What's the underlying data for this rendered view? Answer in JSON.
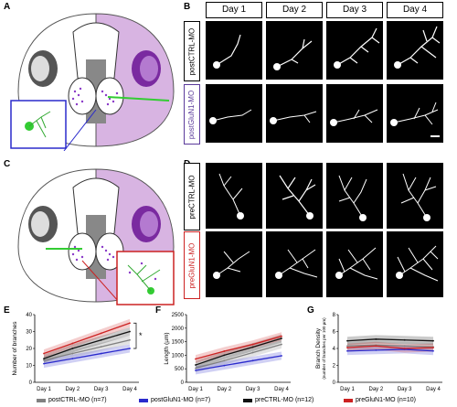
{
  "panel_labels": [
    "A",
    "B",
    "C",
    "D",
    "E",
    "F",
    "G"
  ],
  "days": [
    "Day 1",
    "Day 2",
    "Day 3",
    "Day 4"
  ],
  "row_labels": {
    "b_top": "postCTRL-MO",
    "b_bottom": "postGluN1-MO",
    "d_top": "preCTRL-MO",
    "d_bottom": "preGluN1-MO"
  },
  "colors": {
    "postCTRL": "#808080",
    "postGluN1": "#2a2acc",
    "preCTRL": "#111111",
    "preGluN1": "#cc2222",
    "brain_purple": "#d8b4e2",
    "eye_purple": "#7a2aa0",
    "label_purple": "#5a3a9a",
    "label_red": "#cc2222"
  },
  "legend": [
    {
      "label": "postCTRL-MO (n=7)",
      "color": "#808080"
    },
    {
      "label": "postGluN1-MO (n=7)",
      "color": "#2a2acc"
    },
    {
      "label": "preCTRL-MO (n=12)",
      "color": "#111111"
    },
    {
      "label": "preGluN1-MO (n=10)",
      "color": "#cc2222"
    }
  ],
  "significance": "*",
  "chart_data": [
    {
      "type": "line",
      "panel": "E",
      "categories": [
        "Day 1",
        "Day 2",
        "Day 3",
        "Day 4"
      ],
      "ylabel": "Number of branches",
      "yticks": [
        0,
        10,
        20,
        30,
        40
      ],
      "ylim": [
        0,
        40
      ],
      "series": [
        {
          "name": "postCTRL-MO (n=7)",
          "values": [
            13,
            17,
            21,
            25
          ]
        },
        {
          "name": "postGluN1-MO (n=7)",
          "values": [
            11,
            14,
            17,
            20
          ]
        },
        {
          "name": "preCTRL-MO (n=12)",
          "values": [
            14,
            20,
            25,
            30
          ]
        },
        {
          "name": "preGluN1-MO (n=10)",
          "values": [
            17,
            23,
            29,
            35
          ]
        }
      ]
    },
    {
      "type": "line",
      "panel": "F",
      "categories": [
        "Day 1",
        "Day 2",
        "Day 3",
        "Day 4"
      ],
      "ylabel": "Length (µm)",
      "yticks": [
        0,
        500,
        1000,
        1500,
        2000,
        2500
      ],
      "ylim": [
        0,
        2500
      ],
      "series": [
        {
          "name": "postCTRL-MO (n=7)",
          "values": [
            520,
            800,
            1100,
            1400
          ]
        },
        {
          "name": "postGluN1-MO (n=7)",
          "values": [
            440,
            620,
            800,
            980
          ]
        },
        {
          "name": "preCTRL-MO (n=12)",
          "values": [
            640,
            1000,
            1300,
            1620
          ]
        },
        {
          "name": "preGluN1-MO (n=10)",
          "values": [
            860,
            1150,
            1400,
            1700
          ]
        }
      ]
    },
    {
      "type": "line",
      "panel": "G",
      "categories": [
        "Day 1",
        "Day 2",
        "Day 3",
        "Day 4"
      ],
      "ylabel": "Branch Density",
      "ylabel2": "(number of branches per 100 µm)",
      "yticks": [
        0,
        2,
        4,
        6,
        8
      ],
      "ylim": [
        0,
        8
      ],
      "series": [
        {
          "name": "postCTRL-MO (n=7)",
          "values": [
            4.3,
            4.4,
            4.3,
            4.2
          ]
        },
        {
          "name": "postGluN1-MO (n=7)",
          "values": [
            3.7,
            3.8,
            3.9,
            3.7
          ]
        },
        {
          "name": "preCTRL-MO (n=12)",
          "values": [
            4.9,
            5.1,
            5.0,
            4.9
          ]
        },
        {
          "name": "preGluN1-MO (n=10)",
          "values": [
            4.1,
            4.3,
            4.0,
            4.1
          ]
        }
      ]
    }
  ]
}
